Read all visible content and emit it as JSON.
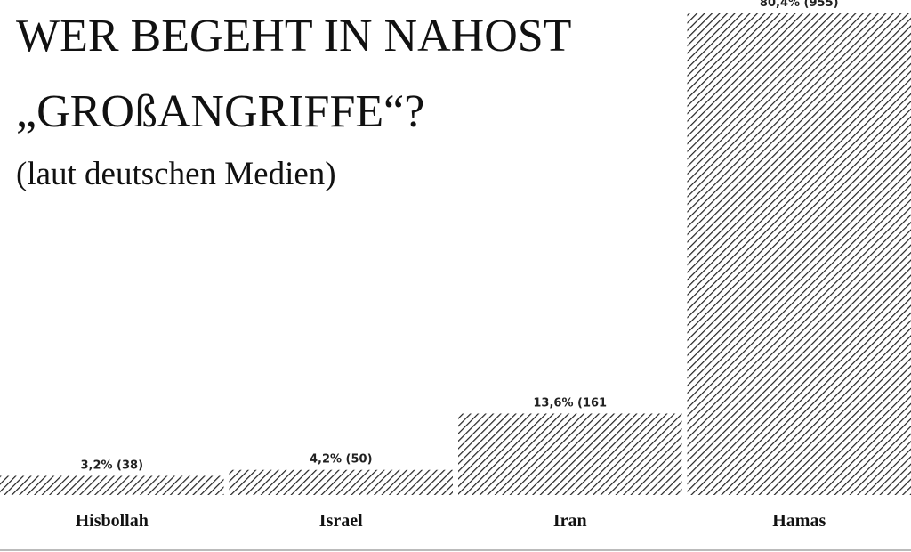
{
  "chart_data": {
    "type": "bar",
    "title": [
      "WER BEGEHT IN NAHOST",
      "„GROßANGRIFFE“?"
    ],
    "subtitle": "(laut deutschen Medien)",
    "categories": [
      "Hisbollah",
      "Israel",
      "Iran",
      "Hamas"
    ],
    "values": [
      3.2,
      4.2,
      13.6,
      80.4
    ],
    "value_labels": [
      "3,2% (38)",
      "4,2% (50)",
      "13,6% (161",
      "80,4% (955)"
    ],
    "color": "#222222"
  }
}
